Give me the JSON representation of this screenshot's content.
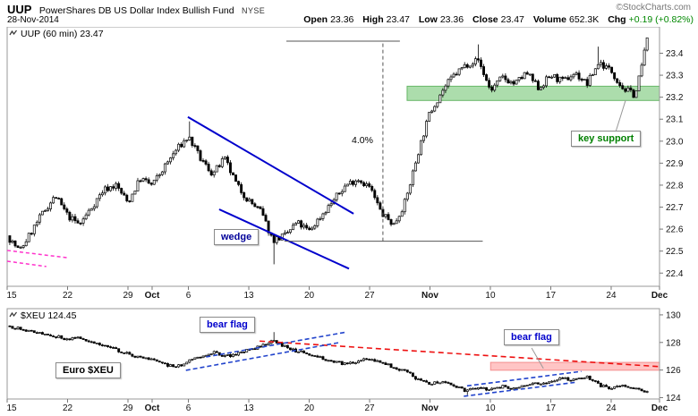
{
  "header": {
    "symbol": "UUP",
    "name": "PowerShares DB US Dollar Index Bullish Fund",
    "exchange": "NYSE",
    "date": "28-Nov-2014",
    "credit": "©StockCharts.com",
    "quote": {
      "open_label": "Open",
      "open": "23.36",
      "high_label": "High",
      "high": "23.47",
      "low_label": "Low",
      "low": "23.36",
      "close_label": "Close",
      "close": "23.47",
      "volume_label": "Volume",
      "volume": "652.3K",
      "chg_label": "Chg",
      "chg": "+0.19 (+0.82%)"
    }
  },
  "panels": {
    "main_title": "UUP (60 min) 23.47",
    "lower_title": "$XEU 124.45"
  },
  "annotations_text": {
    "wedge": "wedge",
    "key_support": "key support",
    "measure_pct": "4.0%",
    "bear_flag_1": "bear flag",
    "bear_flag_2": "bear flag",
    "euro": "Euro $XEU"
  },
  "colors": {
    "candle": "#000000",
    "trendline_blue": "#0000cc",
    "flag_blue": "#2244cc",
    "support_green_fill": "rgba(70,180,70,0.45)",
    "resist_red": "#ee1111",
    "magenta": "#ff33cc",
    "chg_green": "#008800"
  },
  "chart_data": [
    {
      "type": "candlestick",
      "symbol": "UUP",
      "timeframe": "60 min",
      "title": "UUP (60 min) 23.47",
      "last_close": 23.47,
      "ylim": [
        22.34,
        23.52
      ],
      "yticks": [
        [
          "23.4",
          23.4
        ],
        [
          "23.3",
          23.3
        ],
        [
          "23.2",
          23.2
        ],
        [
          "23.1",
          23.1
        ],
        [
          "23.0",
          23.0
        ],
        [
          "22.9",
          22.9
        ],
        [
          "22.8",
          22.8
        ],
        [
          "22.7",
          22.7
        ],
        [
          "22.6",
          22.6
        ],
        [
          "22.5",
          22.5
        ],
        [
          "22.4",
          22.4
        ]
      ],
      "x_labels": [
        [
          "15",
          0.0
        ],
        [
          "22",
          0.0926
        ],
        [
          "29",
          0.1852
        ],
        [
          "Oct",
          0.2222
        ],
        [
          "6",
          0.2778
        ],
        [
          "13",
          0.3704
        ],
        [
          "20",
          0.463
        ],
        [
          "27",
          0.5556
        ],
        [
          "Nov",
          0.6481
        ],
        [
          "10",
          0.7407
        ],
        [
          "17",
          0.8333
        ],
        [
          "24",
          0.9259
        ],
        [
          "Dec",
          1.0
        ]
      ],
      "n_candles": 235,
      "price_path": [
        [
          0.0,
          22.57
        ],
        [
          0.019,
          22.5
        ],
        [
          0.056,
          22.68
        ],
        [
          0.074,
          22.75
        ],
        [
          0.093,
          22.66
        ],
        [
          0.111,
          22.62
        ],
        [
          0.148,
          22.78
        ],
        [
          0.167,
          22.8
        ],
        [
          0.185,
          22.72
        ],
        [
          0.204,
          22.83
        ],
        [
          0.222,
          22.8
        ],
        [
          0.259,
          22.96
        ],
        [
          0.278,
          23.02
        ],
        [
          0.296,
          22.92
        ],
        [
          0.315,
          22.85
        ],
        [
          0.333,
          22.92
        ],
        [
          0.352,
          22.8
        ],
        [
          0.37,
          22.73
        ],
        [
          0.389,
          22.68
        ],
        [
          0.407,
          22.55
        ],
        [
          0.426,
          22.57
        ],
        [
          0.444,
          22.63
        ],
        [
          0.463,
          22.59
        ],
        [
          0.481,
          22.66
        ],
        [
          0.5,
          22.73
        ],
        [
          0.519,
          22.8
        ],
        [
          0.537,
          22.83
        ],
        [
          0.556,
          22.79
        ],
        [
          0.574,
          22.67
        ],
        [
          0.593,
          22.62
        ],
        [
          0.611,
          22.73
        ],
        [
          0.63,
          22.95
        ],
        [
          0.648,
          23.13
        ],
        [
          0.667,
          23.23
        ],
        [
          0.685,
          23.3
        ],
        [
          0.704,
          23.35
        ],
        [
          0.722,
          23.37
        ],
        [
          0.741,
          23.23
        ],
        [
          0.759,
          23.29
        ],
        [
          0.778,
          23.26
        ],
        [
          0.796,
          23.31
        ],
        [
          0.815,
          23.24
        ],
        [
          0.833,
          23.3
        ],
        [
          0.852,
          23.27
        ],
        [
          0.87,
          23.31
        ],
        [
          0.889,
          23.26
        ],
        [
          0.907,
          23.36
        ],
        [
          0.926,
          23.32
        ],
        [
          0.944,
          23.24
        ],
        [
          0.963,
          23.21
        ],
        [
          0.981,
          23.46
        ]
      ],
      "spikes": [
        {
          "t": 0.278,
          "high": 23.09
        },
        {
          "t": 0.407,
          "low": 22.44
        },
        {
          "t": 0.722,
          "high": 23.44
        },
        {
          "t": 0.907,
          "high": 23.43
        }
      ],
      "zones": [
        {
          "t1": 0.613,
          "t2": 1.0,
          "p1": 23.185,
          "p2": 23.25,
          "fill": "rgba(70,180,70,0.45)",
          "stroke": "rgba(0,130,0,0.5)"
        }
      ],
      "lines": [
        {
          "x1": 0.277,
          "y1": 23.11,
          "x2": 0.531,
          "y2": 22.67,
          "color": "#0000cc",
          "w": 2
        },
        {
          "x1": 0.325,
          "y1": 22.69,
          "x2": 0.524,
          "y2": 22.42,
          "color": "#0000cc",
          "w": 2
        },
        {
          "x1": 0.0,
          "y1": 22.503,
          "x2": 0.092,
          "y2": 22.47,
          "color": "#ff33cc",
          "w": 1.5,
          "dash": "4,3"
        },
        {
          "x1": 0.0,
          "y1": 22.454,
          "x2": 0.06,
          "y2": 22.43,
          "color": "#ff33cc",
          "w": 1.5,
          "dash": "4,3"
        },
        {
          "x1": 0.428,
          "y1": 23.455,
          "x2": 0.602,
          "y2": 23.455,
          "color": "#555555",
          "w": 1
        },
        {
          "x1": 0.425,
          "y1": 22.545,
          "x2": 0.729,
          "y2": 22.545,
          "color": "#555555",
          "w": 1
        },
        {
          "x1": 0.576,
          "y1": 22.545,
          "x2": 0.576,
          "y2": 23.455,
          "color": "#555555",
          "w": 1,
          "dash": "4,3"
        },
        {
          "x1": 0.933,
          "y1": 23.044,
          "x2": 0.948,
          "y2": 23.186,
          "color": "#999999",
          "w": 1
        }
      ]
    },
    {
      "type": "candlestick",
      "symbol": "$XEU",
      "title": "$XEU 124.45",
      "last_close": 124.45,
      "ylim": [
        123.9,
        130.45
      ],
      "yticks": [
        [
          "130",
          130
        ],
        [
          "128",
          128
        ],
        [
          "126",
          126
        ],
        [
          "124",
          124
        ]
      ],
      "x_labels": [
        [
          "15",
          0.0
        ],
        [
          "22",
          0.0926
        ],
        [
          "29",
          0.1852
        ],
        [
          "Oct",
          0.2222
        ],
        [
          "6",
          0.2778
        ],
        [
          "13",
          0.3704
        ],
        [
          "20",
          0.463
        ],
        [
          "27",
          0.5556
        ],
        [
          "Nov",
          0.6481
        ],
        [
          "10",
          0.7407
        ],
        [
          "17",
          0.8333
        ],
        [
          "24",
          0.9259
        ],
        [
          "Dec",
          1.0
        ]
      ],
      "n_candles": 235,
      "price_path": [
        [
          0.0,
          129.2
        ],
        [
          0.019,
          129.0
        ],
        [
          0.037,
          128.8
        ],
        [
          0.074,
          128.45
        ],
        [
          0.093,
          128.2
        ],
        [
          0.111,
          128.35
        ],
        [
          0.148,
          127.8
        ],
        [
          0.185,
          127.15
        ],
        [
          0.204,
          126.9
        ],
        [
          0.222,
          126.75
        ],
        [
          0.241,
          126.4
        ],
        [
          0.259,
          126.2
        ],
        [
          0.278,
          126.6
        ],
        [
          0.296,
          127.0
        ],
        [
          0.315,
          127.3
        ],
        [
          0.333,
          126.95
        ],
        [
          0.352,
          127.2
        ],
        [
          0.37,
          127.45
        ],
        [
          0.389,
          127.7
        ],
        [
          0.407,
          128.2
        ],
        [
          0.426,
          127.7
        ],
        [
          0.444,
          127.35
        ],
        [
          0.463,
          127.15
        ],
        [
          0.481,
          126.9
        ],
        [
          0.5,
          126.6
        ],
        [
          0.519,
          126.45
        ],
        [
          0.537,
          126.65
        ],
        [
          0.556,
          126.8
        ],
        [
          0.574,
          126.55
        ],
        [
          0.593,
          126.2
        ],
        [
          0.611,
          125.9
        ],
        [
          0.63,
          125.3
        ],
        [
          0.648,
          125.0
        ],
        [
          0.667,
          125.2
        ],
        [
          0.685,
          124.9
        ],
        [
          0.704,
          124.45
        ],
        [
          0.722,
          124.75
        ],
        [
          0.741,
          124.55
        ],
        [
          0.759,
          124.8
        ],
        [
          0.778,
          124.65
        ],
        [
          0.796,
          124.9
        ],
        [
          0.815,
          125.05
        ],
        [
          0.833,
          125.2
        ],
        [
          0.852,
          125.4
        ],
        [
          0.87,
          125.3
        ],
        [
          0.889,
          125.5
        ],
        [
          0.907,
          124.9
        ],
        [
          0.926,
          124.65
        ],
        [
          0.944,
          124.85
        ],
        [
          0.963,
          124.6
        ],
        [
          0.981,
          124.45
        ]
      ],
      "spikes": [
        {
          "t": 0.407,
          "high": 128.75
        },
        {
          "t": 0.704,
          "low": 124.2
        }
      ],
      "zones": [
        {
          "t1": 0.741,
          "t2": 1.0,
          "p1": 125.98,
          "p2": 126.56,
          "fill": "rgba(255,90,90,0.35)",
          "stroke": "rgba(220,0,0,0.35)"
        }
      ],
      "lines": [
        {
          "x1": 0.387,
          "y1": 128.1,
          "x2": 1.0,
          "y2": 126.25,
          "color": "#ee1111",
          "w": 1.6,
          "dash": "6,4"
        },
        {
          "x1": 0.274,
          "y1": 125.98,
          "x2": 0.51,
          "y2": 128.0,
          "color": "#2244cc",
          "w": 1.6,
          "dash": "5,3"
        },
        {
          "x1": 0.305,
          "y1": 126.95,
          "x2": 0.52,
          "y2": 128.75,
          "color": "#2244cc",
          "w": 1.6,
          "dash": "5,3"
        },
        {
          "x1": 0.7,
          "y1": 124.1,
          "x2": 0.87,
          "y2": 125.1,
          "color": "#2244cc",
          "w": 1.6,
          "dash": "5,3"
        },
        {
          "x1": 0.705,
          "y1": 124.85,
          "x2": 0.88,
          "y2": 125.9,
          "color": "#2244cc",
          "w": 1.6,
          "dash": "5,3"
        },
        {
          "x1": 0.804,
          "y1": 127.6,
          "x2": 0.822,
          "y2": 126.11,
          "color": "#999999",
          "w": 1
        }
      ]
    }
  ]
}
